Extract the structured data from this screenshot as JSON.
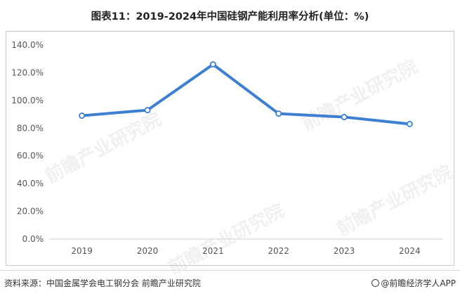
{
  "header": {
    "title": "图表11：2019-2024年中国硅钢产能利用率分析(单位：%)"
  },
  "chart_data": {
    "type": "line",
    "categories": [
      "2019",
      "2020",
      "2021",
      "2022",
      "2023",
      "2024"
    ],
    "series": [
      {
        "values": [
          89.0,
          93.0,
          126.0,
          90.5,
          88.0,
          83.0
        ]
      }
    ],
    "yticks": [
      "0.0%",
      "20.0%",
      "40.0%",
      "60.0%",
      "80.0%",
      "100.0%",
      "120.0%",
      "140.0%"
    ],
    "ylim": [
      0,
      140
    ],
    "grid": false,
    "legend": "none",
    "line_color": "#3d7fd1"
  },
  "footer": {
    "source": "资料来源：中国金属学会电工钢分会 前瞻产业研究院",
    "brand": "@前瞻经济学人APP"
  },
  "watermarks": [
    "前瞻产业研究院",
    "前瞻产业研究院",
    "前瞻产业研究院",
    "前瞻产业研究院"
  ]
}
